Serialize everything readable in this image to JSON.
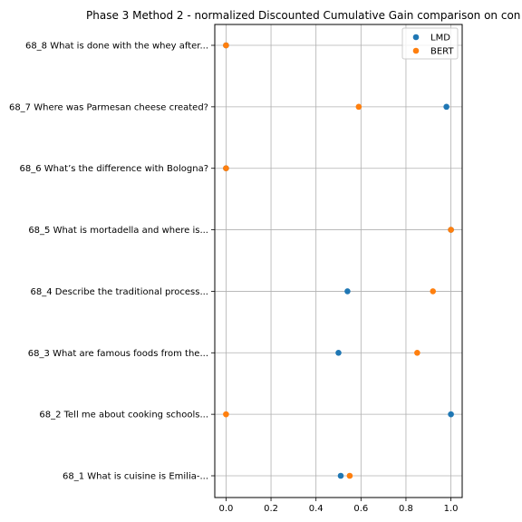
{
  "chart_data": {
    "type": "scatter",
    "title": "Phase 3 Method 2 - normalized Discounted Cumulative Gain comparison on con",
    "xlabel": "",
    "ylabel": "",
    "xlim": [
      -0.05,
      1.05
    ],
    "x_ticks": [
      "0.0",
      "0.2",
      "0.4",
      "0.6",
      "0.8",
      "1.0"
    ],
    "x_tick_values": [
      0.0,
      0.2,
      0.4,
      0.6,
      0.8,
      1.0
    ],
    "grid": true,
    "legend_position": "top-right",
    "categories": [
      "68_1 What is cuisine is Emilia-...",
      "68_2 Tell me about cooking schools...",
      "68_3 What are famous foods from the...",
      "68_4 Describe the traditional process...",
      "68_5 What is mortadella and where is...",
      "68_6 What’s the difference with Bologna?",
      "68_7 Where was Parmesan cheese created?",
      "68_8 What is done with the whey after..."
    ],
    "series": [
      {
        "name": "LMD",
        "color": "#1f77b4",
        "values": [
          0.51,
          1.0,
          0.5,
          0.54,
          1.0,
          0.0,
          0.98,
          0.0
        ]
      },
      {
        "name": "BERT",
        "color": "#ff7f0e",
        "values": [
          0.55,
          0.0,
          0.85,
          0.92,
          1.0,
          0.0,
          0.59,
          0.0
        ]
      }
    ]
  }
}
